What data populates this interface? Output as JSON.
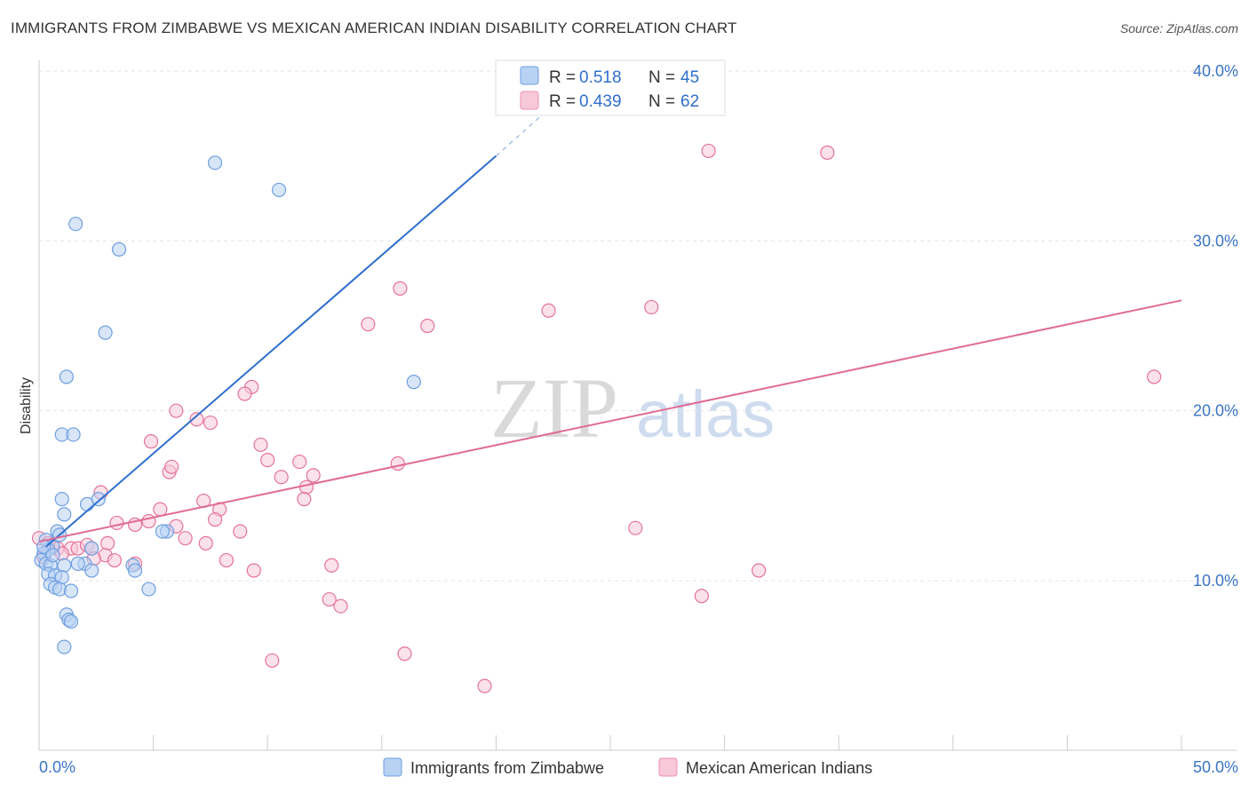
{
  "title": "IMMIGRANTS FROM ZIMBABWE VS MEXICAN AMERICAN INDIAN DISABILITY CORRELATION CHART",
  "source": "Source: ZipAtlas.com",
  "watermark": {
    "zip": "ZIP",
    "atlas": "atlas"
  },
  "stats": [
    {
      "r_label": "R =",
      "r_value": "0.518",
      "n_label": "N =",
      "n_value": "45",
      "color": "#a9c8f0",
      "stroke": "#6f9fe0"
    },
    {
      "r_label": "R =",
      "r_value": "0.439",
      "n_label": "N =",
      "n_value": "62",
      "color": "#f7c1d3",
      "stroke": "#ec8fb0"
    }
  ],
  "chart_data": {
    "type": "scatter",
    "title": "IMMIGRANTS FROM ZIMBABWE VS MEXICAN AMERICAN INDIAN DISABILITY CORRELATION CHART",
    "xlabel": "",
    "ylabel": "Disability",
    "xlim": [
      0,
      50
    ],
    "ylim": [
      0,
      42
    ],
    "x_tick_labels": [
      "0.0%",
      "50.0%"
    ],
    "y_ticks": [
      10,
      20,
      30,
      40
    ],
    "y_tick_labels": [
      "10.0%",
      "20.0%",
      "30.0%",
      "40.0%"
    ],
    "legend_position": "bottom",
    "series": [
      {
        "name": "Immigrants from Zimbabwe",
        "color": "#6f9fe0",
        "fill": "#b8d2f3",
        "trend": {
          "x0": 0.3,
          "y0": 12.0,
          "x1": 20.0,
          "y1": 35.0,
          "dash_to_x": 23.0,
          "dash_to_y": 38.6
        },
        "points": [
          [
            7.7,
            34.6
          ],
          [
            10.5,
            33.0
          ],
          [
            1.6,
            31.0
          ],
          [
            3.5,
            29.5
          ],
          [
            2.9,
            24.6
          ],
          [
            1.2,
            22.0
          ],
          [
            16.4,
            21.7
          ],
          [
            1.0,
            18.6
          ],
          [
            1.5,
            18.6
          ],
          [
            1.0,
            14.8
          ],
          [
            2.1,
            14.5
          ],
          [
            2.6,
            14.8
          ],
          [
            1.1,
            13.9
          ],
          [
            0.8,
            12.9
          ],
          [
            0.9,
            12.7
          ],
          [
            5.6,
            12.9
          ],
          [
            5.4,
            12.9
          ],
          [
            0.3,
            12.4
          ],
          [
            0.6,
            12.0
          ],
          [
            0.4,
            11.8
          ],
          [
            0.2,
            11.6
          ],
          [
            0.1,
            11.2
          ],
          [
            0.3,
            11.0
          ],
          [
            0.5,
            10.9
          ],
          [
            1.1,
            10.9
          ],
          [
            2.0,
            11.0
          ],
          [
            1.7,
            11.0
          ],
          [
            2.3,
            11.9
          ],
          [
            4.1,
            10.9
          ],
          [
            4.2,
            10.6
          ],
          [
            0.4,
            10.4
          ],
          [
            0.7,
            10.3
          ],
          [
            1.0,
            10.2
          ],
          [
            2.3,
            10.6
          ],
          [
            0.5,
            9.8
          ],
          [
            0.7,
            9.6
          ],
          [
            0.9,
            9.5
          ],
          [
            1.4,
            9.4
          ],
          [
            4.8,
            9.5
          ],
          [
            1.2,
            8.0
          ],
          [
            1.3,
            7.7
          ],
          [
            1.4,
            7.6
          ],
          [
            1.1,
            6.1
          ],
          [
            0.2,
            12.0
          ],
          [
            0.6,
            11.5
          ]
        ]
      },
      {
        "name": "Mexican American Indians",
        "color": "#e4739b",
        "fill": "#f7c8d8",
        "trend": {
          "x0": 0.0,
          "y0": 12.3,
          "x1": 50.0,
          "y1": 26.5
        },
        "points": [
          [
            29.3,
            35.3
          ],
          [
            34.5,
            35.2
          ],
          [
            15.8,
            27.2
          ],
          [
            26.8,
            26.1
          ],
          [
            22.3,
            25.9
          ],
          [
            14.4,
            25.1
          ],
          [
            17.0,
            25.0
          ],
          [
            48.8,
            22.0
          ],
          [
            9.3,
            21.4
          ],
          [
            9.0,
            21.0
          ],
          [
            6.0,
            20.0
          ],
          [
            6.9,
            19.5
          ],
          [
            7.5,
            19.3
          ],
          [
            4.9,
            18.2
          ],
          [
            9.7,
            18.0
          ],
          [
            5.7,
            16.4
          ],
          [
            5.8,
            16.7
          ],
          [
            10.0,
            17.1
          ],
          [
            11.4,
            17.0
          ],
          [
            15.7,
            16.9
          ],
          [
            10.6,
            16.1
          ],
          [
            12.0,
            16.2
          ],
          [
            11.7,
            15.5
          ],
          [
            2.7,
            15.2
          ],
          [
            7.2,
            14.7
          ],
          [
            11.6,
            14.8
          ],
          [
            5.3,
            14.2
          ],
          [
            7.9,
            14.2
          ],
          [
            3.4,
            13.4
          ],
          [
            4.2,
            13.3
          ],
          [
            4.8,
            13.5
          ],
          [
            6.0,
            13.2
          ],
          [
            7.7,
            13.6
          ],
          [
            8.8,
            12.9
          ],
          [
            26.1,
            13.1
          ],
          [
            6.4,
            12.5
          ],
          [
            7.3,
            12.2
          ],
          [
            3.0,
            12.2
          ],
          [
            1.4,
            11.9
          ],
          [
            1.7,
            11.9
          ],
          [
            2.1,
            12.1
          ],
          [
            2.3,
            11.9
          ],
          [
            0.0,
            12.5
          ],
          [
            0.6,
            12.0
          ],
          [
            0.8,
            11.9
          ],
          [
            0.2,
            11.4
          ],
          [
            1.0,
            11.6
          ],
          [
            2.9,
            11.5
          ],
          [
            2.4,
            11.3
          ],
          [
            3.3,
            11.2
          ],
          [
            4.2,
            11.0
          ],
          [
            8.2,
            11.2
          ],
          [
            9.4,
            10.6
          ],
          [
            12.8,
            10.9
          ],
          [
            31.5,
            10.6
          ],
          [
            29.0,
            9.1
          ],
          [
            12.7,
            8.9
          ],
          [
            13.2,
            8.5
          ],
          [
            10.2,
            5.3
          ],
          [
            16.0,
            5.7
          ],
          [
            19.5,
            3.8
          ],
          [
            0.4,
            12.2
          ]
        ]
      }
    ]
  }
}
